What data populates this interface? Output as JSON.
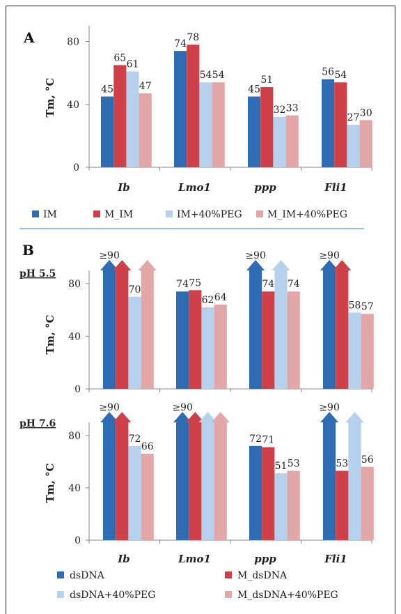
{
  "panel_a": {
    "label": "A"
  },
  "panel_b": {
    "label": "B"
  },
  "colors": {
    "IM": "#2e6db3",
    "M_IM": "#cf4049",
    "IM+40%PEG": "#b6d1ee",
    "M_IM+40%PEG": "#e3a7a7"
  },
  "chart_data": [
    {
      "id": "A",
      "type": "bar",
      "categories": [
        "Ib",
        "Lmo1",
        "ppp",
        "Fli1"
      ],
      "ylabel": "Tm, °C",
      "ylim": [
        0,
        90
      ],
      "yticks": [
        0,
        40,
        80
      ],
      "series": [
        {
          "name": "IM",
          "values": [
            45,
            74,
            45,
            56
          ],
          "labels": [
            "45",
            "74",
            "45",
            "56"
          ]
        },
        {
          "name": "M_IM",
          "values": [
            65,
            78,
            51,
            54
          ],
          "labels": [
            "65",
            "78",
            "51",
            "54"
          ]
        },
        {
          "name": "IM+40%PEG",
          "values": [
            61,
            54,
            32,
            27
          ],
          "labels": [
            "61",
            "54",
            "32",
            "27"
          ]
        },
        {
          "name": "M_IM+40%PEG",
          "values": [
            47,
            54,
            33,
            30
          ],
          "labels": [
            "47",
            "54",
            "33",
            "30"
          ]
        }
      ],
      "legend": [
        "IM",
        "M_IM",
        "IM+40%PEG",
        "M_IM+40%PEG"
      ]
    },
    {
      "id": "B1",
      "type": "bar",
      "subtitle": "pH 5.5",
      "categories": [
        "Ib",
        "Lmo1",
        "ppp",
        "Fli1"
      ],
      "ylabel": "Tm, °C",
      "ylim": [
        0,
        90
      ],
      "yticks": [
        0,
        40,
        80
      ],
      "series": [
        {
          "name": "dsDNA",
          "values": [
            90,
            74,
            90,
            90
          ],
          "labels": [
            "≥90",
            "74",
            "≥90",
            "≥90"
          ],
          "arrow": [
            true,
            false,
            true,
            true
          ]
        },
        {
          "name": "M_dsDNA",
          "values": [
            90,
            75,
            74,
            90
          ],
          "labels": [
            "",
            "75",
            "74",
            ""
          ],
          "arrow": [
            true,
            false,
            false,
            true
          ]
        },
        {
          "name": "dsDNA+40%PEG",
          "values": [
            70,
            62,
            90,
            58
          ],
          "labels": [
            "70",
            "62",
            "",
            "58"
          ],
          "arrow": [
            false,
            false,
            true,
            false
          ]
        },
        {
          "name": "M_dsDNA+40%PEG",
          "values": [
            90,
            64,
            74,
            57
          ],
          "labels": [
            "",
            "64",
            "74",
            "57"
          ],
          "arrow": [
            true,
            false,
            false,
            false
          ]
        }
      ]
    },
    {
      "id": "B2",
      "type": "bar",
      "subtitle": "pH 7.6",
      "categories": [
        "Ib",
        "Lmo1",
        "ppp",
        "Fli1"
      ],
      "ylabel": "Tm, °C",
      "ylim": [
        0,
        90
      ],
      "yticks": [
        0,
        40,
        80
      ],
      "series": [
        {
          "name": "dsDNA",
          "values": [
            90,
            90,
            72,
            90
          ],
          "labels": [
            "≥90",
            "≥90",
            "72",
            "≥90"
          ],
          "arrow": [
            true,
            true,
            false,
            true
          ]
        },
        {
          "name": "M_dsDNA",
          "values": [
            90,
            90,
            71,
            53
          ],
          "labels": [
            "",
            "",
            "71",
            "53"
          ],
          "arrow": [
            true,
            true,
            false,
            false
          ]
        },
        {
          "name": "dsDNA+40%PEG",
          "values": [
            72,
            90,
            51,
            90
          ],
          "labels": [
            "72",
            "",
            "51",
            ""
          ],
          "arrow": [
            false,
            true,
            false,
            true
          ]
        },
        {
          "name": "M_dsDNA+40%PEG",
          "values": [
            66,
            90,
            53,
            56
          ],
          "labels": [
            "66",
            "",
            "53",
            "56"
          ],
          "arrow": [
            false,
            true,
            false,
            false
          ]
        }
      ],
      "legend": [
        "dsDNA",
        "M_dsDNA",
        "dsDNA+40%PEG",
        "M_dsDNA+40%PEG"
      ]
    }
  ]
}
